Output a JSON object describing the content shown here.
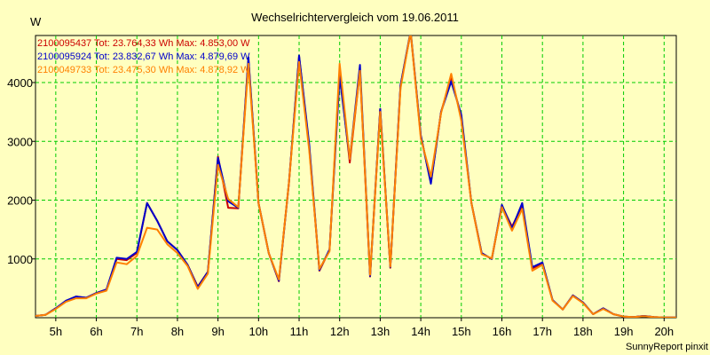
{
  "chart_data": {
    "type": "line",
    "title": "Wechselrichtervergleich vom 19.06.2011",
    "ylabel": "W",
    "xlabel": "",
    "xlim": [
      4.5,
      20.3
    ],
    "ylim": [
      0,
      4800
    ],
    "x_ticks": [
      5,
      6,
      7,
      8,
      9,
      10,
      11,
      12,
      13,
      14,
      15,
      16,
      17,
      18,
      19,
      20
    ],
    "x_tick_labels": [
      "5h",
      "6h",
      "7h",
      "8h",
      "9h",
      "10h",
      "11h",
      "12h",
      "13h",
      "14h",
      "15h",
      "16h",
      "17h",
      "18h",
      "19h",
      "20h"
    ],
    "y_ticks": [
      1000,
      2000,
      3000,
      4000
    ],
    "y_tick_labels": [
      "1000",
      "2000",
      "3000",
      "4000"
    ],
    "grid": true,
    "legend_position": "top-left",
    "footer": "SunnyReport pinxit",
    "series": [
      {
        "name": "2100095437",
        "legend": "2100095437 Tot: 23.764,33 Wh Max: 4.853,00 W",
        "color": "#cc0000",
        "x": [
          4.5,
          4.75,
          5.0,
          5.25,
          5.5,
          5.75,
          6.0,
          6.25,
          6.5,
          6.75,
          7.0,
          7.25,
          7.5,
          7.75,
          8.0,
          8.25,
          8.5,
          8.75,
          9.0,
          9.25,
          9.5,
          9.75,
          10.0,
          10.25,
          10.5,
          10.75,
          11.0,
          11.25,
          11.5,
          11.75,
          12.0,
          12.25,
          12.5,
          12.75,
          13.0,
          13.25,
          13.5,
          13.75,
          14.0,
          14.25,
          14.5,
          14.75,
          15.0,
          15.25,
          15.5,
          15.75,
          16.0,
          16.25,
          16.5,
          16.75,
          17.0,
          17.25,
          17.5,
          17.75,
          18.0,
          18.25,
          18.5,
          18.75,
          19.0,
          19.25,
          19.5,
          19.75,
          20.0,
          20.3
        ],
        "values": [
          30,
          50,
          160,
          280,
          360,
          340,
          420,
          480,
          1000,
          980,
          1100,
          1950,
          1650,
          1300,
          1150,
          900,
          530,
          780,
          2740,
          1870,
          1860,
          4400,
          1950,
          1100,
          620,
          2300,
          4450,
          2900,
          800,
          1150,
          4200,
          2640,
          4200,
          700,
          3550,
          850,
          3950,
          4850,
          3100,
          2300,
          3500,
          4100,
          3400,
          1950,
          1100,
          1000,
          1900,
          1550,
          1900,
          840,
          920,
          300,
          140,
          380,
          260,
          60,
          160,
          60,
          20,
          10,
          30,
          10,
          5,
          5
        ]
      },
      {
        "name": "2100095924",
        "legend": "2100095924 Tot: 23.832,67 Wh Max: 4.879,69 W",
        "color": "#0000cc",
        "x": [
          4.5,
          4.75,
          5.0,
          5.25,
          5.5,
          5.75,
          6.0,
          6.25,
          6.5,
          6.75,
          7.0,
          7.25,
          7.5,
          7.75,
          8.0,
          8.25,
          8.5,
          8.75,
          9.0,
          9.25,
          9.5,
          9.75,
          10.0,
          10.25,
          10.5,
          10.75,
          11.0,
          11.25,
          11.5,
          11.75,
          12.0,
          12.25,
          12.5,
          12.75,
          13.0,
          13.25,
          13.5,
          13.75,
          14.0,
          14.25,
          14.5,
          14.75,
          15.0,
          15.25,
          15.5,
          15.75,
          16.0,
          16.25,
          16.5,
          16.75,
          17.0,
          17.25,
          17.5,
          17.75,
          18.0,
          18.25,
          18.5,
          18.75,
          19.0,
          19.25,
          19.5,
          19.75,
          20.0,
          20.3
        ],
        "values": [
          30,
          50,
          160,
          290,
          360,
          340,
          420,
          480,
          1020,
          1000,
          1120,
          1950,
          1650,
          1300,
          1150,
          900,
          520,
          780,
          2720,
          1980,
          1870,
          4430,
          1950,
          1100,
          630,
          2300,
          4460,
          2950,
          810,
          1160,
          4100,
          2700,
          4300,
          710,
          3550,
          860,
          3950,
          4880,
          3100,
          2280,
          3500,
          4020,
          3450,
          1950,
          1100,
          1000,
          1920,
          1520,
          1950,
          860,
          940,
          300,
          140,
          380,
          260,
          60,
          160,
          60,
          20,
          10,
          30,
          10,
          5,
          5
        ]
      },
      {
        "name": "2100049733",
        "legend": "2100049733 Tot: 23.475,30 Wh Max: 4.878,92 W",
        "color": "#ff8000",
        "x": [
          4.5,
          4.75,
          5.0,
          5.25,
          5.5,
          5.75,
          6.0,
          6.25,
          6.5,
          6.75,
          7.0,
          7.25,
          7.5,
          7.75,
          8.0,
          8.25,
          8.5,
          8.75,
          9.0,
          9.25,
          9.5,
          9.75,
          10.0,
          10.25,
          10.5,
          10.75,
          11.0,
          11.25,
          11.5,
          11.75,
          12.0,
          12.25,
          12.5,
          12.75,
          13.0,
          13.25,
          13.5,
          13.75,
          14.0,
          14.25,
          14.5,
          14.75,
          15.0,
          15.25,
          15.5,
          15.75,
          16.0,
          16.25,
          16.5,
          16.75,
          17.0,
          17.25,
          17.5,
          17.75,
          18.0,
          18.25,
          18.5,
          18.75,
          19.0,
          19.25,
          19.5,
          19.75,
          20.0,
          20.3
        ],
        "values": [
          30,
          50,
          150,
          270,
          330,
          330,
          410,
          460,
          940,
          910,
          1050,
          1530,
          1500,
          1250,
          1100,
          880,
          490,
          750,
          2600,
          2020,
          1880,
          4320,
          1950,
          1100,
          650,
          2300,
          4350,
          2850,
          830,
          1130,
          4320,
          2700,
          4200,
          730,
          3500,
          870,
          3900,
          4870,
          3050,
          2400,
          3480,
          4150,
          3350,
          1950,
          1080,
          1010,
          1880,
          1480,
          1850,
          800,
          900,
          290,
          140,
          370,
          250,
          60,
          150,
          60,
          20,
          10,
          25,
          10,
          5,
          5
        ]
      }
    ]
  }
}
